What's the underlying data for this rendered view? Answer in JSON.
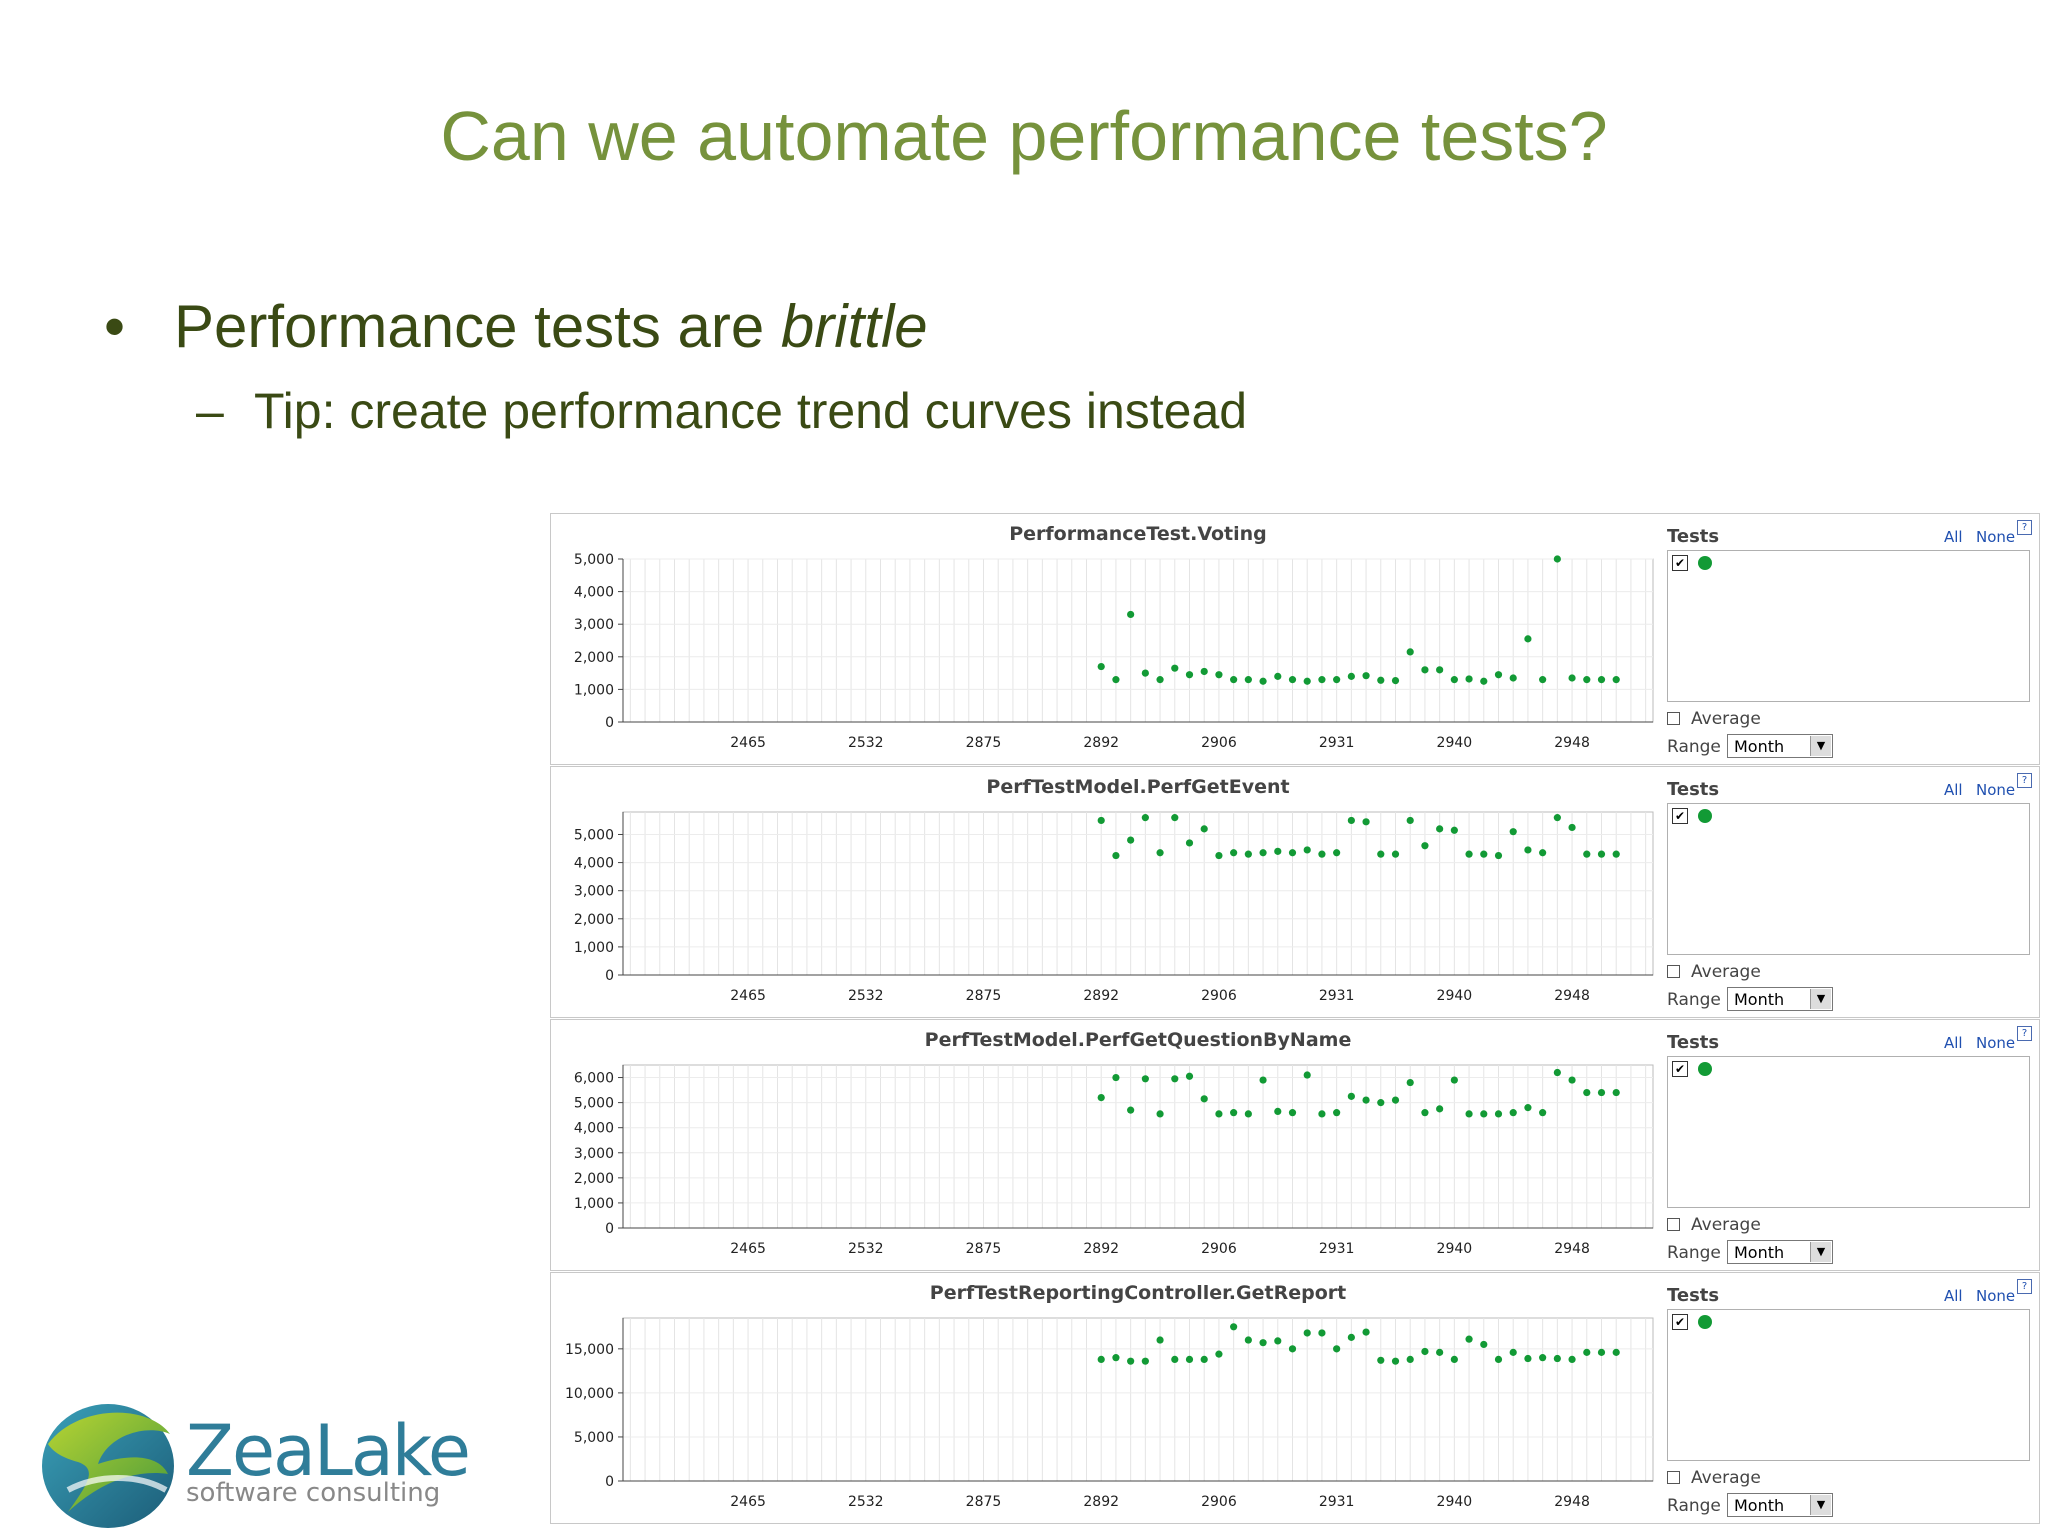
{
  "slide": {
    "title": "Can we automate performance tests?",
    "bullet": "•",
    "bullet_text_before": "Performance tests are ",
    "bullet_text_emph": "brittle",
    "dash": "–",
    "sub_bullet_text": "Tip: create performance trend curves instead"
  },
  "logo": {
    "brand": "ZeaLake",
    "tagline": "software consulting"
  },
  "side_panel": {
    "tests_label": "Tests",
    "all_label": "All",
    "none_label": "None",
    "help_glyph": "?",
    "check_glyph": "✔",
    "average_label": "Average",
    "range_label": "Range",
    "range_value": "Month",
    "dropdown_arrow": "▼"
  },
  "colors": {
    "title": "#76923c",
    "bullet_text": "#3a4a14",
    "series": "#129a35",
    "link": "#2050b0",
    "logo": "#2f7d99"
  },
  "chart_data": [
    {
      "type": "scatter",
      "title": "PerformanceTest.Voting",
      "ylim": [
        0,
        5000
      ],
      "yticks": [
        0,
        1000,
        2000,
        3000,
        4000,
        5000
      ],
      "ytick_labels": [
        "0",
        "1,000",
        "2,000",
        "3,000",
        "4,000",
        "5,000"
      ],
      "xtick_labels": [
        "2465",
        "2532",
        "2875",
        "2892",
        "2906",
        "2931",
        "2940",
        "2948"
      ],
      "x_count": 70,
      "grid": true,
      "series": [
        {
          "x": [
            32,
            33,
            34,
            35,
            36,
            37,
            38,
            39,
            40,
            41,
            42,
            43,
            44,
            45,
            46,
            47,
            48,
            49,
            50,
            51,
            52,
            53,
            54,
            55,
            56,
            57,
            58,
            59,
            60,
            61,
            62,
            63,
            64,
            65,
            66,
            67
          ],
          "values": [
            1700,
            1300,
            3300,
            1500,
            1300,
            1650,
            1450,
            1550,
            1450,
            1300,
            1300,
            1250,
            1400,
            1300,
            1250,
            1300,
            1300,
            1400,
            1420,
            1280,
            1270,
            2150,
            1600,
            1600,
            1300,
            1320,
            1250,
            1450,
            1350,
            2550,
            1300,
            5000,
            1350,
            1300,
            1300,
            1300
          ]
        }
      ]
    },
    {
      "type": "scatter",
      "title": "PerfTestModel.PerfGetEvent",
      "ylim": [
        0,
        5800
      ],
      "yticks": [
        0,
        1000,
        2000,
        3000,
        4000,
        5000
      ],
      "ytick_labels": [
        "0",
        "1,000",
        "2,000",
        "3,000",
        "4,000",
        "5,000"
      ],
      "xtick_labels": [
        "2465",
        "2532",
        "2875",
        "2892",
        "2906",
        "2931",
        "2940",
        "2948"
      ],
      "x_count": 70,
      "grid": true,
      "series": [
        {
          "x": [
            32,
            33,
            34,
            35,
            36,
            37,
            38,
            39,
            40,
            41,
            42,
            43,
            44,
            45,
            46,
            47,
            48,
            49,
            50,
            51,
            52,
            53,
            54,
            55,
            56,
            57,
            58,
            59,
            60,
            61,
            62,
            63,
            64,
            65,
            66,
            67
          ],
          "values": [
            5500,
            4250,
            4800,
            5600,
            4350,
            5600,
            4700,
            5200,
            4250,
            4350,
            4300,
            4350,
            4400,
            4350,
            4450,
            4300,
            4350,
            5500,
            5450,
            4300,
            4300,
            5500,
            4600,
            5200,
            5150,
            4300,
            4300,
            4250,
            5100,
            4450,
            4350,
            5600,
            5250,
            4300,
            4300,
            4300
          ]
        }
      ]
    },
    {
      "type": "scatter",
      "title": "PerfTestModel.PerfGetQuestionByName",
      "ylim": [
        0,
        6500
      ],
      "yticks": [
        0,
        1000,
        2000,
        3000,
        4000,
        5000,
        6000
      ],
      "ytick_labels": [
        "0",
        "1,000",
        "2,000",
        "3,000",
        "4,000",
        "5,000",
        "6,000"
      ],
      "xtick_labels": [
        "2465",
        "2532",
        "2875",
        "2892",
        "2906",
        "2931",
        "2940",
        "2948"
      ],
      "x_count": 70,
      "grid": true,
      "series": [
        {
          "x": [
            32,
            33,
            34,
            35,
            36,
            37,
            38,
            39,
            40,
            41,
            42,
            43,
            44,
            45,
            46,
            47,
            48,
            49,
            50,
            51,
            52,
            53,
            54,
            55,
            56,
            57,
            58,
            59,
            60,
            61,
            62,
            63,
            64,
            65,
            66,
            67
          ],
          "values": [
            5200,
            6000,
            4700,
            5950,
            4550,
            5950,
            6050,
            5150,
            4550,
            4600,
            4550,
            5900,
            4650,
            4600,
            6100,
            4550,
            4600,
            5250,
            5100,
            5000,
            5100,
            5800,
            4600,
            4750,
            5900,
            4550,
            4550,
            4550,
            4600,
            4800,
            4600,
            6200,
            5900,
            5400,
            5400,
            5400
          ]
        }
      ]
    },
    {
      "type": "scatter",
      "title": "PerfTestReportingController.GetReport",
      "ylim": [
        0,
        18500
      ],
      "yticks": [
        0,
        5000,
        10000,
        15000
      ],
      "ytick_labels": [
        "0",
        "5,000",
        "10,000",
        "15,000"
      ],
      "xtick_labels": [
        "2465",
        "2532",
        "2875",
        "2892",
        "2906",
        "2931",
        "2940",
        "2948"
      ],
      "x_count": 70,
      "grid": true,
      "series": [
        {
          "x": [
            32,
            33,
            34,
            35,
            36,
            37,
            38,
            39,
            40,
            41,
            42,
            43,
            44,
            45,
            46,
            47,
            48,
            49,
            50,
            51,
            52,
            53,
            54,
            55,
            56,
            57,
            58,
            59,
            60,
            61,
            62,
            63,
            64,
            65,
            66,
            67
          ],
          "values": [
            13800,
            14000,
            13600,
            13600,
            16000,
            13800,
            13800,
            13800,
            14400,
            17500,
            16000,
            15700,
            15900,
            15000,
            16800,
            16800,
            15000,
            16300,
            16900,
            13700,
            13600,
            13800,
            14700,
            14600,
            13800,
            16100,
            15500,
            13800,
            14600,
            13900,
            14000,
            13900,
            13800,
            14600,
            14600,
            14600
          ]
        }
      ]
    }
  ]
}
